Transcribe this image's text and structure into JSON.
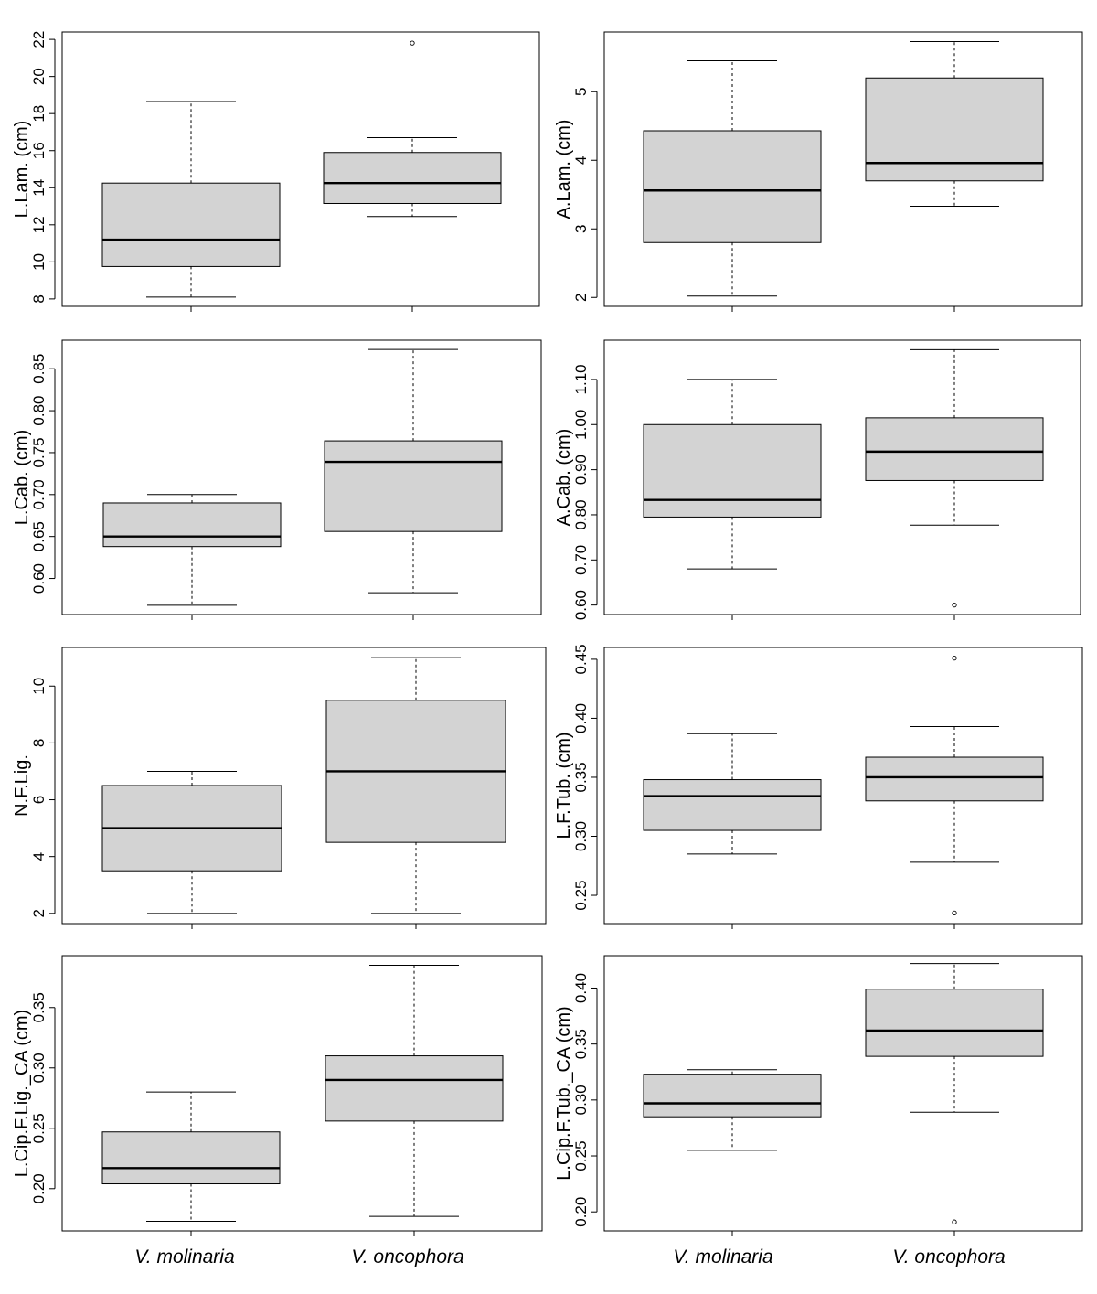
{
  "groups": [
    "V. molinaria",
    "V. oncophora"
  ],
  "colors": {
    "box_fill": "#d3d3d3",
    "stroke": "#000000"
  },
  "chart_data": [
    {
      "type": "boxplot",
      "ylabel": "L.Lam. (cm)",
      "categories": [
        "V. molinaria",
        "V. oncophora"
      ],
      "yticks": [
        8,
        10,
        12,
        14,
        16,
        18,
        20,
        22
      ],
      "ylim": [
        7.6,
        22.4
      ],
      "series": [
        {
          "name": "V. molinaria",
          "whisker_low": 8.1,
          "q1": 9.75,
          "median": 11.2,
          "q3": 14.25,
          "whisker_high": 18.65,
          "outliers": []
        },
        {
          "name": "V. oncophora",
          "whisker_low": 12.45,
          "q1": 13.15,
          "median": 14.25,
          "q3": 15.9,
          "whisker_high": 16.7,
          "outliers": [
            21.8
          ]
        }
      ]
    },
    {
      "type": "boxplot",
      "ylabel": "A.Lam. (cm)",
      "categories": [
        "V. molinaria",
        "V. oncophora"
      ],
      "yticks": [
        2,
        3,
        4,
        5
      ],
      "ylim": [
        1.87,
        5.87
      ],
      "series": [
        {
          "name": "V. molinaria",
          "whisker_low": 2.02,
          "q1": 2.8,
          "median": 3.56,
          "q3": 4.43,
          "whisker_high": 5.45,
          "outliers": []
        },
        {
          "name": "V. oncophora",
          "whisker_low": 3.33,
          "q1": 3.7,
          "median": 3.96,
          "q3": 5.2,
          "whisker_high": 5.73,
          "outliers": []
        }
      ]
    },
    {
      "type": "boxplot",
      "ylabel": "L.Cab. (cm)",
      "categories": [
        "V. molinaria",
        "V. oncophora"
      ],
      "yticks": [
        0.6,
        0.65,
        0.7,
        0.75,
        0.8,
        0.85
      ],
      "ylim": [
        0.557,
        0.884
      ],
      "series": [
        {
          "name": "V. molinaria",
          "whisker_low": 0.568,
          "q1": 0.638,
          "median": 0.65,
          "q3": 0.69,
          "whisker_high": 0.7,
          "outliers": []
        },
        {
          "name": "V. oncophora",
          "whisker_low": 0.583,
          "q1": 0.656,
          "median": 0.739,
          "q3": 0.764,
          "whisker_high": 0.873,
          "outliers": []
        }
      ]
    },
    {
      "type": "boxplot",
      "ylabel": "A.Cab. (cm)",
      "categories": [
        "V. molinaria",
        "V. oncophora"
      ],
      "yticks": [
        0.6,
        0.7,
        0.8,
        0.9,
        1.0,
        1.1
      ],
      "ylim": [
        0.579,
        1.187
      ],
      "series": [
        {
          "name": "V. molinaria",
          "whisker_low": 0.68,
          "q1": 0.795,
          "median": 0.833,
          "q3": 1.0,
          "whisker_high": 1.1,
          "outliers": []
        },
        {
          "name": "V. oncophora",
          "whisker_low": 0.777,
          "q1": 0.876,
          "median": 0.94,
          "q3": 1.015,
          "whisker_high": 1.166,
          "outliers": [
            0.6
          ]
        }
      ]
    },
    {
      "type": "boxplot",
      "ylabel": "N.F.Lig.",
      "categories": [
        "V. molinaria",
        "V. oncophora"
      ],
      "yticks": [
        2,
        4,
        6,
        8,
        10
      ],
      "ylim": [
        1.64,
        11.36
      ],
      "series": [
        {
          "name": "V. molinaria",
          "whisker_low": 2,
          "q1": 3.5,
          "median": 5,
          "q3": 6.5,
          "whisker_high": 7,
          "outliers": []
        },
        {
          "name": "V. oncophora",
          "whisker_low": 2,
          "q1": 4.5,
          "median": 7,
          "q3": 9.5,
          "whisker_high": 11,
          "outliers": []
        }
      ]
    },
    {
      "type": "boxplot",
      "ylabel": "L.F.Tub. (cm)",
      "categories": [
        "V. molinaria",
        "V. oncophora"
      ],
      "yticks": [
        0.25,
        0.3,
        0.35,
        0.4,
        0.45
      ],
      "ylim": [
        0.226,
        0.46
      ],
      "series": [
        {
          "name": "V. molinaria",
          "whisker_low": 0.285,
          "q1": 0.305,
          "median": 0.334,
          "q3": 0.348,
          "whisker_high": 0.387,
          "outliers": []
        },
        {
          "name": "V. oncophora",
          "whisker_low": 0.278,
          "q1": 0.33,
          "median": 0.35,
          "q3": 0.367,
          "whisker_high": 0.393,
          "outliers": [
            0.451,
            0.235
          ]
        }
      ]
    },
    {
      "type": "boxplot",
      "ylabel": "L.Cip.F.Lig._CA (cm)",
      "categories": [
        "V. molinaria",
        "V. oncophora"
      ],
      "yticks": [
        0.2,
        0.25,
        0.3,
        0.35
      ],
      "ylim": [
        0.165,
        0.393
      ],
      "series": [
        {
          "name": "V. molinaria",
          "whisker_low": 0.173,
          "q1": 0.204,
          "median": 0.217,
          "q3": 0.247,
          "whisker_high": 0.28,
          "outliers": []
        },
        {
          "name": "V. oncophora",
          "whisker_low": 0.177,
          "q1": 0.256,
          "median": 0.29,
          "q3": 0.31,
          "whisker_high": 0.385,
          "outliers": []
        }
      ]
    },
    {
      "type": "boxplot",
      "ylabel": "L.Cip.F.Tub._CA (cm)",
      "categories": [
        "V. molinaria",
        "V. oncophora"
      ],
      "yticks": [
        0.2,
        0.25,
        0.3,
        0.35,
        0.4
      ],
      "ylim": [
        0.183,
        0.429
      ],
      "series": [
        {
          "name": "V. molinaria",
          "whisker_low": 0.255,
          "q1": 0.285,
          "median": 0.297,
          "q3": 0.323,
          "whisker_high": 0.327,
          "outliers": []
        },
        {
          "name": "V. oncophora",
          "whisker_low": 0.289,
          "q1": 0.339,
          "median": 0.362,
          "q3": 0.399,
          "whisker_high": 0.422,
          "outliers": [
            0.191
          ]
        }
      ]
    }
  ]
}
